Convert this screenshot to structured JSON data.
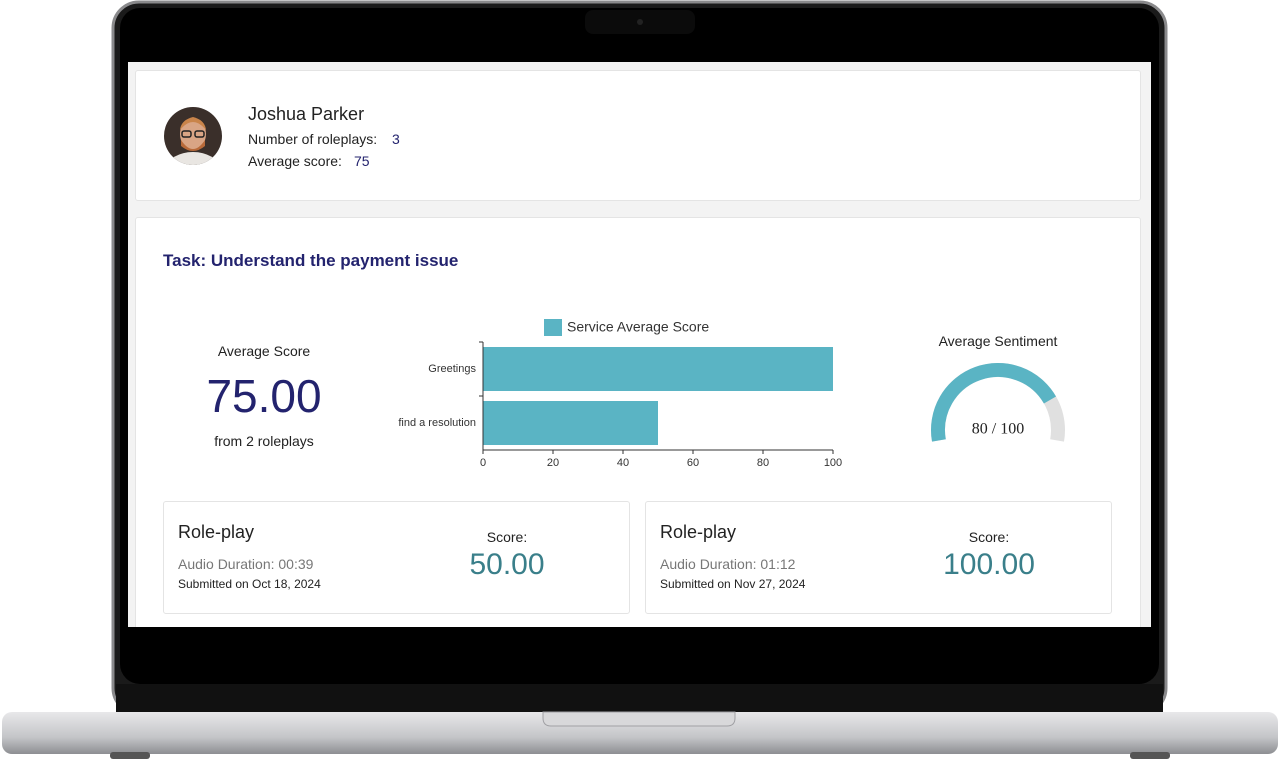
{
  "profile": {
    "name": "Joshua Parker",
    "roleplays_label": "Number of roleplays:",
    "roleplays": 3,
    "average_label": "Average score:",
    "average": 75
  },
  "task": {
    "title": "Task: Understand the payment issue"
  },
  "average_score": {
    "label": "Average Score",
    "value": "75.00",
    "caption": "from 2 roleplays"
  },
  "chart_data": {
    "type": "bar",
    "orientation": "horizontal",
    "categories": [
      "Greetings",
      "find a resolution"
    ],
    "series": [
      {
        "name": "Service Average Score",
        "color": "#5ab4c4",
        "values": [
          100,
          50
        ]
      }
    ],
    "xlim": [
      0,
      100
    ],
    "xticks": [
      0,
      20,
      40,
      60,
      80,
      100
    ]
  },
  "sentiment": {
    "title": "Average Sentiment",
    "value": 80,
    "max": 100,
    "label": "80 / 100",
    "color": "#5ab4c4",
    "track_color": "#e0e0e0"
  },
  "roleplays": [
    {
      "title": "Role-play",
      "duration": "Audio Duration: 00:39",
      "submitted": "Submitted on Oct 18, 2024",
      "score_label": "Score:",
      "score": "50.00"
    },
    {
      "title": "Role-play",
      "duration": "Audio Duration: 01:12",
      "submitted": "Submitted on Nov 27, 2024",
      "score_label": "Score:",
      "score": "100.00"
    }
  ]
}
